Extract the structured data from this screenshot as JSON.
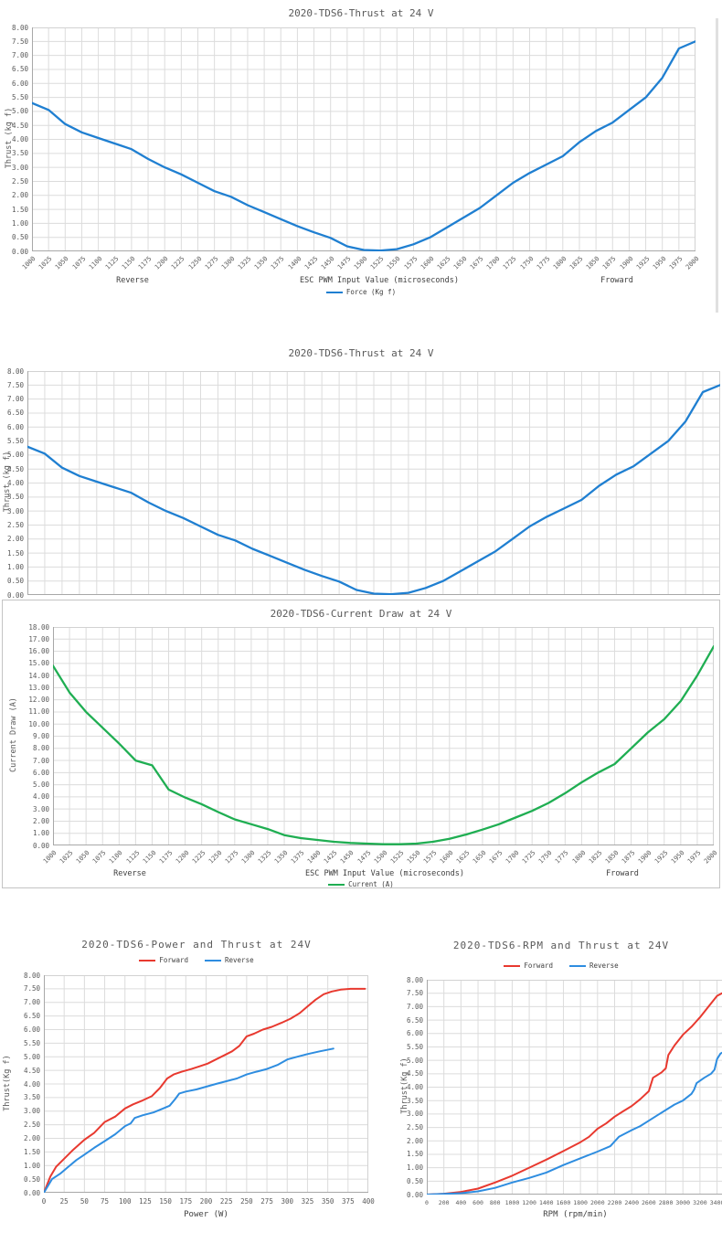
{
  "page": {
    "background": "#ffffff"
  },
  "colors": {
    "blue": "#1f7fd1",
    "green": "#1fae52",
    "red": "#e8392f",
    "light_blue": "#2e8de0",
    "grid": "#dcdcdc",
    "text": "#595959"
  },
  "chart_data": [
    {
      "type": "line",
      "title": "2020-TDS6-Thrust at 24 V",
      "xlabel": "ESC PWM Input Value (microseconds)",
      "ylabel": "Thrust (kg f)",
      "zone_labels": {
        "left": "Reverse",
        "right": "Froward"
      },
      "legend": [
        {
          "label": "Force (Kg f)",
          "color": "#1f7fd1"
        }
      ],
      "xlim": [
        1000,
        2000
      ],
      "ylim": [
        0,
        8
      ],
      "y_step": 0.5,
      "grid": true,
      "x_ticks": [
        1000,
        1025,
        1050,
        1075,
        1100,
        1125,
        1150,
        1175,
        1200,
        1225,
        1250,
        1275,
        1300,
        1325,
        1350,
        1375,
        1400,
        1425,
        1450,
        1475,
        1500,
        1525,
        1550,
        1575,
        1600,
        1625,
        1650,
        1675,
        1700,
        1725,
        1750,
        1775,
        1800,
        1825,
        1850,
        1875,
        1900,
        1925,
        1950,
        1975,
        2000
      ],
      "series": [
        {
          "name": "Force (Kg f)",
          "color": "#1f7fd1",
          "y": [
            5.3,
            5.05,
            4.55,
            4.25,
            4.05,
            3.85,
            3.65,
            3.3,
            3.0,
            2.75,
            2.45,
            2.15,
            1.95,
            1.65,
            1.4,
            1.15,
            0.9,
            0.68,
            0.48,
            0.18,
            0.05,
            0.03,
            0.08,
            0.25,
            0.5,
            0.85,
            1.2,
            1.55,
            2.0,
            2.45,
            2.8,
            3.1,
            3.4,
            3.9,
            4.3,
            4.6,
            5.05,
            5.5,
            6.2,
            7.25,
            7.5
          ]
        }
      ]
    },
    {
      "type": "line",
      "title": "2020-TDS6-Thrust at 24 V",
      "ylabel": "Thrust (kg f)",
      "xlim": [
        1000,
        2000
      ],
      "ylim": [
        0,
        8
      ],
      "y_step": 0.5,
      "grid": true,
      "x_ticks": [
        1000,
        1025,
        1050,
        1075,
        1100,
        1125,
        1150,
        1175,
        1200,
        1225,
        1250,
        1275,
        1300,
        1325,
        1350,
        1375,
        1400,
        1425,
        1450,
        1475,
        1500,
        1525,
        1550,
        1575,
        1600,
        1625,
        1650,
        1675,
        1700,
        1725,
        1750,
        1775,
        1800,
        1825,
        1850,
        1875,
        1900,
        1925,
        1950,
        1975,
        2000
      ],
      "series": [
        {
          "name": "Force (Kg f)",
          "color": "#1f7fd1",
          "y": [
            5.3,
            5.05,
            4.55,
            4.25,
            4.05,
            3.85,
            3.65,
            3.3,
            3.0,
            2.75,
            2.45,
            2.15,
            1.95,
            1.65,
            1.4,
            1.15,
            0.9,
            0.68,
            0.48,
            0.18,
            0.05,
            0.03,
            0.08,
            0.25,
            0.5,
            0.85,
            1.2,
            1.55,
            2.0,
            2.45,
            2.8,
            3.1,
            3.4,
            3.9,
            4.3,
            4.6,
            5.05,
            5.5,
            6.2,
            7.25,
            7.5
          ]
        }
      ]
    },
    {
      "type": "line",
      "title": "2020-TDS6-Current Draw at 24 V",
      "xlabel": "ESC PWM Input Value (microseconds)",
      "ylabel": "Current Draw (A)",
      "zone_labels": {
        "left": "Reverse",
        "right": "Froward"
      },
      "legend": [
        {
          "label": "Current (A)",
          "color": "#1fae52"
        }
      ],
      "xlim": [
        1000,
        2000
      ],
      "ylim": [
        0,
        18
      ],
      "y_step": 1,
      "grid": true,
      "x_ticks": [
        1000,
        1025,
        1050,
        1075,
        1100,
        1125,
        1150,
        1175,
        1200,
        1225,
        1250,
        1275,
        1300,
        1325,
        1350,
        1375,
        1400,
        1425,
        1450,
        1475,
        1500,
        1525,
        1550,
        1575,
        1600,
        1625,
        1650,
        1675,
        1700,
        1725,
        1750,
        1775,
        1800,
        1825,
        1850,
        1875,
        1900,
        1925,
        1950,
        1975,
        2000
      ],
      "series": [
        {
          "name": "Current (A)",
          "color": "#1fae52",
          "y": [
            14.8,
            12.6,
            11.0,
            9.7,
            8.4,
            7.0,
            6.6,
            4.6,
            3.95,
            3.4,
            2.75,
            2.15,
            1.75,
            1.35,
            0.85,
            0.6,
            0.45,
            0.3,
            0.2,
            0.15,
            0.1,
            0.1,
            0.15,
            0.3,
            0.55,
            0.9,
            1.3,
            1.75,
            2.3,
            2.85,
            3.5,
            4.3,
            5.2,
            6.0,
            6.7,
            8.0,
            9.3,
            10.4,
            11.9,
            14.0,
            16.4
          ]
        }
      ]
    },
    {
      "type": "line",
      "title": "2020-TDS6-Power and Thrust at 24V",
      "xlabel": "Power (W)",
      "ylabel": "Thrust(Kg f)",
      "legend": [
        {
          "label": "Forward",
          "color": "#e8392f"
        },
        {
          "label": "Reverse",
          "color": "#2e8de0"
        }
      ],
      "xlim": [
        0,
        400
      ],
      "ylim": [
        0,
        8
      ],
      "y_step": 0.5,
      "grid": true,
      "x_ticks": [
        0,
        25,
        50,
        75,
        100,
        125,
        150,
        175,
        200,
        225,
        250,
        275,
        300,
        325,
        350,
        375,
        400
      ],
      "series": [
        {
          "name": "Forward",
          "color": "#e8392f",
          "x": [
            0,
            8,
            15,
            25,
            35,
            50,
            62,
            75,
            88,
            100,
            110,
            122,
            133,
            143,
            152,
            160,
            170,
            182,
            192,
            202,
            212,
            222,
            232,
            241,
            250,
            259,
            270,
            281,
            293,
            304,
            315,
            325,
            335,
            345,
            355,
            366,
            378,
            396
          ],
          "y": [
            0,
            0.6,
            0.95,
            1.25,
            1.55,
            1.95,
            2.2,
            2.6,
            2.8,
            3.1,
            3.25,
            3.4,
            3.55,
            3.85,
            4.2,
            4.35,
            4.45,
            4.55,
            4.65,
            4.75,
            4.9,
            5.05,
            5.2,
            5.4,
            5.75,
            5.85,
            6.0,
            6.1,
            6.25,
            6.4,
            6.6,
            6.85,
            7.1,
            7.3,
            7.4,
            7.47,
            7.5,
            7.5
          ]
        },
        {
          "name": "Reverse",
          "color": "#2e8de0",
          "x": [
            0,
            10,
            20,
            30,
            40,
            50,
            62,
            75,
            88,
            100,
            107,
            112,
            122,
            135,
            147,
            155,
            162,
            167,
            175,
            188,
            200,
            212,
            225,
            238,
            250,
            262,
            275,
            288,
            300,
            312,
            325,
            340,
            357
          ],
          "y": [
            0,
            0.5,
            0.7,
            0.95,
            1.2,
            1.4,
            1.65,
            1.9,
            2.15,
            2.45,
            2.55,
            2.75,
            2.85,
            2.95,
            3.1,
            3.2,
            3.45,
            3.65,
            3.72,
            3.8,
            3.9,
            4.0,
            4.1,
            4.2,
            4.35,
            4.45,
            4.55,
            4.7,
            4.9,
            5.0,
            5.1,
            5.2,
            5.3
          ]
        }
      ]
    },
    {
      "type": "line",
      "title": "2020-TDS6-RPM and Thrust at 24V",
      "xlabel": "RPM (rpm/min)",
      "ylabel": "Thrust(Kg f)",
      "legend": [
        {
          "label": "Forward",
          "color": "#e8392f"
        },
        {
          "label": "Reverse",
          "color": "#2e8de0"
        }
      ],
      "xlim": [
        0,
        3640
      ],
      "ylim": [
        0,
        8
      ],
      "y_step": 0.5,
      "grid": true,
      "x_ticks": [
        0,
        200,
        400,
        600,
        800,
        1000,
        1200,
        1400,
        1600,
        1800,
        2000,
        2200,
        2400,
        2600,
        2800,
        3000,
        3200,
        3400
      ],
      "series": [
        {
          "name": "Forward",
          "color": "#e8392f",
          "x": [
            0,
            200,
            400,
            600,
            800,
            1000,
            1200,
            1400,
            1600,
            1800,
            1900,
            2000,
            2100,
            2200,
            2300,
            2400,
            2500,
            2600,
            2650,
            2700,
            2750,
            2800,
            2830,
            2900,
            3000,
            3100,
            3200,
            3300,
            3400,
            3460
          ],
          "y": [
            0,
            0.03,
            0.1,
            0.22,
            0.45,
            0.7,
            1.0,
            1.3,
            1.62,
            1.95,
            2.15,
            2.45,
            2.65,
            2.9,
            3.1,
            3.3,
            3.55,
            3.85,
            4.35,
            4.45,
            4.55,
            4.7,
            5.2,
            5.55,
            5.95,
            6.25,
            6.6,
            7.0,
            7.4,
            7.5
          ]
        },
        {
          "name": "Reverse",
          "color": "#2e8de0",
          "x": [
            0,
            400,
            600,
            800,
            1000,
            1200,
            1400,
            1600,
            1800,
            2000,
            2150,
            2250,
            2400,
            2500,
            2600,
            2700,
            2800,
            2900,
            3000,
            3100,
            3130,
            3160,
            3250,
            3330,
            3370,
            3400,
            3440,
            3470
          ],
          "y": [
            0,
            0.05,
            0.12,
            0.25,
            0.45,
            0.62,
            0.82,
            1.1,
            1.35,
            1.6,
            1.8,
            2.15,
            2.4,
            2.55,
            2.75,
            2.95,
            3.15,
            3.35,
            3.5,
            3.75,
            3.9,
            4.15,
            4.35,
            4.5,
            4.65,
            5.05,
            5.25,
            5.3
          ]
        }
      ]
    }
  ]
}
